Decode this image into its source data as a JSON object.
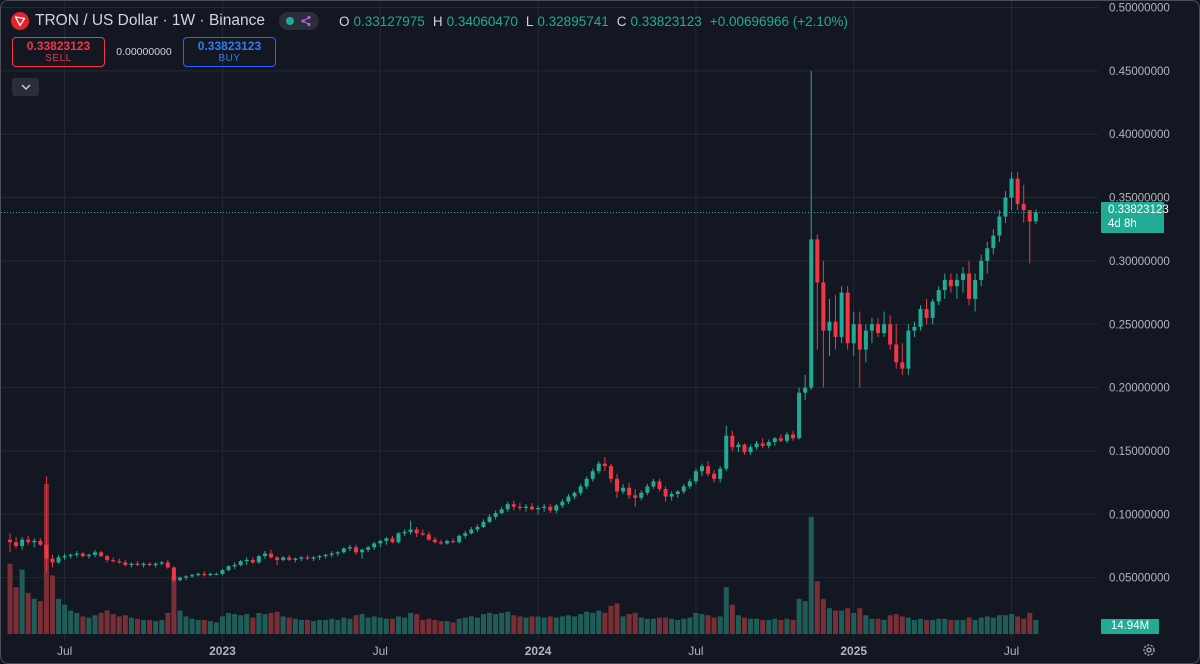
{
  "legend": {
    "symbol": "TRON / US Dollar · 1W · Binance",
    "ohlc": {
      "o_label": "O",
      "o": "0.33127975",
      "h_label": "H",
      "h": "0.34060470",
      "l_label": "L",
      "l": "0.32895741",
      "c_label": "C",
      "c": "0.33823123",
      "change": "+0.00696966 (+2.10%)"
    },
    "status_icon": "connected-dot-icon",
    "indicator_icon": "indicator-plugin-icon"
  },
  "trade": {
    "sell_price": "0.33823123",
    "sell_label": "SELL",
    "spread": "0.00000000",
    "buy_price": "0.33823123",
    "buy_label": "BUY"
  },
  "price_tag": {
    "price": "0.33823123",
    "countdown": "4d 8h"
  },
  "volume_tag": "14.94M",
  "colors": {
    "up": "#22ab94",
    "down": "#f23645",
    "up_volume": "#1f5e58",
    "down_volume": "#7a2e35",
    "background": "#131722",
    "grid": "#242832",
    "axis_text": "#b2b5be"
  },
  "chart_data": {
    "type": "candlestick",
    "timeframe": "1W",
    "exchange": "Binance",
    "ylim": [
      0,
      0.5
    ],
    "y_ticks": [
      "0.50000000",
      "0.45000000",
      "0.40000000",
      "0.35000000",
      "0.30000000",
      "0.25000000",
      "0.20000000",
      "0.15000000",
      "0.10000000",
      "0.05000000"
    ],
    "x_ticks": [
      "Jul",
      "2023",
      "Jul",
      "2024",
      "Jul",
      "2025",
      "Jul"
    ],
    "x_tick_weeks": [
      9,
      35,
      61,
      87,
      113,
      139,
      165
    ],
    "volume_scale_max": 128,
    "last_price": 0.33823123,
    "weeks": [
      "2022-05-02",
      "2022-05-09",
      "2022-05-16",
      "2022-05-23",
      "2022-05-30",
      "2022-06-06",
      "2022-06-13",
      "2022-06-20",
      "2022-06-27",
      "2022-07-04",
      "2022-07-11",
      "2022-07-18",
      "2022-07-25",
      "2022-08-01",
      "2022-08-08",
      "2022-08-15",
      "2022-08-22",
      "2022-08-29",
      "2022-09-05",
      "2022-09-12",
      "2022-09-19",
      "2022-09-26",
      "2022-10-03",
      "2022-10-10",
      "2022-10-17",
      "2022-10-24",
      "2022-10-31",
      "2022-11-07",
      "2022-11-14",
      "2022-11-21",
      "2022-11-28",
      "2022-12-05",
      "2022-12-12",
      "2022-12-19",
      "2022-12-26",
      "2023-01-02",
      "2023-01-09",
      "2023-01-16",
      "2023-01-23",
      "2023-01-30",
      "2023-02-06",
      "2023-02-13",
      "2023-02-20",
      "2023-02-27",
      "2023-03-06",
      "2023-03-13",
      "2023-03-20",
      "2023-03-27",
      "2023-04-03",
      "2023-04-10",
      "2023-04-17",
      "2023-04-24",
      "2023-05-01",
      "2023-05-08",
      "2023-05-15",
      "2023-05-22",
      "2023-05-29",
      "2023-06-05",
      "2023-06-12",
      "2023-06-19",
      "2023-06-26",
      "2023-07-03",
      "2023-07-10",
      "2023-07-17",
      "2023-07-24",
      "2023-07-31",
      "2023-08-07",
      "2023-08-14",
      "2023-08-21",
      "2023-08-28",
      "2023-09-04",
      "2023-09-11",
      "2023-09-18",
      "2023-09-25",
      "2023-10-02",
      "2023-10-09",
      "2023-10-16",
      "2023-10-23",
      "2023-10-30",
      "2023-11-06",
      "2023-11-13",
      "2023-11-20",
      "2023-11-27",
      "2023-12-04",
      "2023-12-11",
      "2023-12-18",
      "2023-12-25",
      "2024-01-01",
      "2024-01-08",
      "2024-01-15",
      "2024-01-22",
      "2024-01-29",
      "2024-02-05",
      "2024-02-12",
      "2024-02-19",
      "2024-02-26",
      "2024-03-04",
      "2024-03-11",
      "2024-03-18",
      "2024-03-25",
      "2024-04-01",
      "2024-04-08",
      "2024-04-15",
      "2024-04-22",
      "2024-04-29",
      "2024-05-06",
      "2024-05-13",
      "2024-05-20",
      "2024-05-27",
      "2024-06-03",
      "2024-06-10",
      "2024-06-17",
      "2024-06-24",
      "2024-07-01",
      "2024-07-08",
      "2024-07-15",
      "2024-07-22",
      "2024-07-29",
      "2024-08-05",
      "2024-08-12",
      "2024-08-19",
      "2024-08-26",
      "2024-09-02",
      "2024-09-09",
      "2024-09-16",
      "2024-09-23",
      "2024-09-30",
      "2024-10-07",
      "2024-10-14",
      "2024-10-21",
      "2024-10-28",
      "2024-11-04",
      "2024-11-11",
      "2024-11-18",
      "2024-11-25",
      "2024-12-02",
      "2024-12-09",
      "2024-12-16",
      "2024-12-23",
      "2024-12-30",
      "2025-01-06",
      "2025-01-13",
      "2025-01-20",
      "2025-01-27",
      "2025-02-03",
      "2025-02-10",
      "2025-02-17",
      "2025-02-24",
      "2025-03-03",
      "2025-03-10",
      "2025-03-17",
      "2025-03-24",
      "2025-03-31",
      "2025-04-07",
      "2025-04-14",
      "2025-04-21",
      "2025-04-28",
      "2025-05-05",
      "2025-05-12",
      "2025-05-19",
      "2025-05-26",
      "2025-06-02",
      "2025-06-09",
      "2025-06-16",
      "2025-06-23",
      "2025-06-30",
      "2025-07-07",
      "2025-07-14",
      "2025-07-21",
      "2025-07-28",
      "2025-08-04",
      "2025-08-11",
      "2025-08-18"
    ],
    "candles": [
      [
        0.08,
        0.085,
        0.07,
        0.078,
        60
      ],
      [
        0.078,
        0.082,
        0.073,
        0.075,
        40
      ],
      [
        0.075,
        0.082,
        0.072,
        0.08,
        55
      ],
      [
        0.08,
        0.083,
        0.076,
        0.078,
        35
      ],
      [
        0.078,
        0.081,
        0.074,
        0.079,
        30
      ],
      [
        0.079,
        0.081,
        0.075,
        0.076,
        28
      ],
      [
        0.076,
        0.13,
        0.055,
        0.065,
        128
      ],
      [
        0.065,
        0.068,
        0.058,
        0.062,
        50
      ],
      [
        0.062,
        0.068,
        0.061,
        0.066,
        30
      ],
      [
        0.066,
        0.069,
        0.064,
        0.067,
        25
      ],
      [
        0.067,
        0.069,
        0.065,
        0.068,
        20
      ],
      [
        0.068,
        0.071,
        0.066,
        0.069,
        18
      ],
      [
        0.069,
        0.07,
        0.066,
        0.067,
        15
      ],
      [
        0.067,
        0.069,
        0.065,
        0.068,
        14
      ],
      [
        0.068,
        0.072,
        0.066,
        0.07,
        16
      ],
      [
        0.07,
        0.071,
        0.066,
        0.067,
        18
      ],
      [
        0.067,
        0.068,
        0.062,
        0.064,
        20
      ],
      [
        0.064,
        0.066,
        0.062,
        0.063,
        17
      ],
      [
        0.063,
        0.065,
        0.061,
        0.062,
        15
      ],
      [
        0.062,
        0.064,
        0.059,
        0.06,
        16
      ],
      [
        0.06,
        0.062,
        0.058,
        0.061,
        14
      ],
      [
        0.061,
        0.063,
        0.059,
        0.06,
        13
      ],
      [
        0.06,
        0.062,
        0.058,
        0.061,
        12
      ],
      [
        0.061,
        0.062,
        0.059,
        0.06,
        12
      ],
      [
        0.06,
        0.062,
        0.058,
        0.061,
        11
      ],
      [
        0.061,
        0.063,
        0.06,
        0.062,
        12
      ],
      [
        0.062,
        0.064,
        0.057,
        0.058,
        18
      ],
      [
        0.058,
        0.059,
        0.046,
        0.048,
        50
      ],
      [
        0.048,
        0.051,
        0.047,
        0.05,
        20
      ],
      [
        0.05,
        0.052,
        0.048,
        0.051,
        15
      ],
      [
        0.051,
        0.053,
        0.05,
        0.052,
        13
      ],
      [
        0.052,
        0.054,
        0.051,
        0.053,
        12
      ],
      [
        0.053,
        0.055,
        0.051,
        0.052,
        12
      ],
      [
        0.052,
        0.054,
        0.051,
        0.053,
        11
      ],
      [
        0.053,
        0.054,
        0.052,
        0.053,
        10
      ],
      [
        0.053,
        0.057,
        0.052,
        0.056,
        15
      ],
      [
        0.056,
        0.06,
        0.055,
        0.059,
        18
      ],
      [
        0.059,
        0.062,
        0.057,
        0.06,
        17
      ],
      [
        0.06,
        0.064,
        0.059,
        0.063,
        16
      ],
      [
        0.063,
        0.066,
        0.06,
        0.064,
        17
      ],
      [
        0.064,
        0.066,
        0.061,
        0.062,
        14
      ],
      [
        0.062,
        0.068,
        0.061,
        0.067,
        18
      ],
      [
        0.067,
        0.071,
        0.065,
        0.069,
        17
      ],
      [
        0.069,
        0.072,
        0.065,
        0.066,
        18
      ],
      [
        0.066,
        0.067,
        0.06,
        0.064,
        19
      ],
      [
        0.064,
        0.067,
        0.063,
        0.066,
        15
      ],
      [
        0.066,
        0.068,
        0.063,
        0.064,
        14
      ],
      [
        0.064,
        0.066,
        0.062,
        0.065,
        13
      ],
      [
        0.065,
        0.067,
        0.063,
        0.066,
        12
      ],
      [
        0.066,
        0.068,
        0.064,
        0.065,
        12
      ],
      [
        0.065,
        0.067,
        0.063,
        0.066,
        11
      ],
      [
        0.066,
        0.068,
        0.064,
        0.067,
        12
      ],
      [
        0.067,
        0.069,
        0.065,
        0.068,
        12
      ],
      [
        0.068,
        0.071,
        0.066,
        0.069,
        13
      ],
      [
        0.069,
        0.071,
        0.067,
        0.07,
        12
      ],
      [
        0.07,
        0.074,
        0.069,
        0.073,
        14
      ],
      [
        0.073,
        0.076,
        0.071,
        0.074,
        13
      ],
      [
        0.074,
        0.076,
        0.068,
        0.07,
        16
      ],
      [
        0.07,
        0.073,
        0.065,
        0.072,
        17
      ],
      [
        0.072,
        0.075,
        0.07,
        0.074,
        14
      ],
      [
        0.074,
        0.078,
        0.072,
        0.077,
        15
      ],
      [
        0.077,
        0.08,
        0.074,
        0.079,
        14
      ],
      [
        0.079,
        0.082,
        0.076,
        0.081,
        13
      ],
      [
        0.081,
        0.083,
        0.077,
        0.078,
        13
      ],
      [
        0.078,
        0.086,
        0.077,
        0.085,
        15
      ],
      [
        0.085,
        0.088,
        0.083,
        0.086,
        14
      ],
      [
        0.086,
        0.095,
        0.084,
        0.088,
        18
      ],
      [
        0.088,
        0.09,
        0.082,
        0.085,
        17
      ],
      [
        0.085,
        0.088,
        0.083,
        0.084,
        12
      ],
      [
        0.084,
        0.086,
        0.079,
        0.08,
        13
      ],
      [
        0.08,
        0.082,
        0.077,
        0.078,
        12
      ],
      [
        0.078,
        0.08,
        0.076,
        0.077,
        11
      ],
      [
        0.077,
        0.08,
        0.076,
        0.079,
        11
      ],
      [
        0.079,
        0.081,
        0.077,
        0.078,
        10
      ],
      [
        0.078,
        0.084,
        0.077,
        0.083,
        13
      ],
      [
        0.083,
        0.087,
        0.081,
        0.085,
        14
      ],
      [
        0.085,
        0.09,
        0.084,
        0.088,
        15
      ],
      [
        0.088,
        0.092,
        0.086,
        0.09,
        14
      ],
      [
        0.09,
        0.096,
        0.089,
        0.094,
        17
      ],
      [
        0.094,
        0.1,
        0.093,
        0.098,
        18
      ],
      [
        0.098,
        0.103,
        0.096,
        0.101,
        17
      ],
      [
        0.101,
        0.106,
        0.1,
        0.104,
        18
      ],
      [
        0.104,
        0.11,
        0.102,
        0.108,
        19
      ],
      [
        0.108,
        0.111,
        0.103,
        0.106,
        16
      ],
      [
        0.106,
        0.109,
        0.103,
        0.105,
        15
      ],
      [
        0.105,
        0.108,
        0.102,
        0.106,
        14
      ],
      [
        0.106,
        0.109,
        0.103,
        0.104,
        15
      ],
      [
        0.104,
        0.107,
        0.1,
        0.105,
        15
      ],
      [
        0.105,
        0.108,
        0.102,
        0.106,
        14
      ],
      [
        0.106,
        0.108,
        0.101,
        0.103,
        15
      ],
      [
        0.103,
        0.108,
        0.101,
        0.107,
        14
      ],
      [
        0.107,
        0.112,
        0.105,
        0.11,
        15
      ],
      [
        0.11,
        0.116,
        0.108,
        0.114,
        16
      ],
      [
        0.114,
        0.118,
        0.112,
        0.117,
        15
      ],
      [
        0.117,
        0.124,
        0.115,
        0.122,
        17
      ],
      [
        0.122,
        0.13,
        0.12,
        0.128,
        19
      ],
      [
        0.128,
        0.136,
        0.126,
        0.134,
        18
      ],
      [
        0.134,
        0.142,
        0.132,
        0.14,
        20
      ],
      [
        0.14,
        0.145,
        0.134,
        0.138,
        18
      ],
      [
        0.138,
        0.14,
        0.125,
        0.128,
        24
      ],
      [
        0.128,
        0.132,
        0.113,
        0.118,
        26
      ],
      [
        0.118,
        0.124,
        0.116,
        0.121,
        15
      ],
      [
        0.121,
        0.125,
        0.112,
        0.115,
        17
      ],
      [
        0.115,
        0.12,
        0.106,
        0.113,
        18
      ],
      [
        0.113,
        0.119,
        0.111,
        0.117,
        14
      ],
      [
        0.117,
        0.124,
        0.115,
        0.122,
        13
      ],
      [
        0.122,
        0.128,
        0.12,
        0.126,
        13
      ],
      [
        0.126,
        0.128,
        0.118,
        0.12,
        14
      ],
      [
        0.12,
        0.122,
        0.11,
        0.114,
        14
      ],
      [
        0.114,
        0.118,
        0.111,
        0.116,
        13
      ],
      [
        0.116,
        0.119,
        0.113,
        0.118,
        12
      ],
      [
        0.118,
        0.124,
        0.116,
        0.122,
        13
      ],
      [
        0.122,
        0.128,
        0.12,
        0.126,
        14
      ],
      [
        0.126,
        0.136,
        0.124,
        0.134,
        18
      ],
      [
        0.134,
        0.14,
        0.13,
        0.138,
        17
      ],
      [
        0.138,
        0.142,
        0.13,
        0.132,
        16
      ],
      [
        0.132,
        0.135,
        0.125,
        0.128,
        14
      ],
      [
        0.128,
        0.138,
        0.125,
        0.136,
        15
      ],
      [
        0.136,
        0.17,
        0.134,
        0.162,
        40
      ],
      [
        0.162,
        0.166,
        0.15,
        0.153,
        25
      ],
      [
        0.153,
        0.157,
        0.149,
        0.155,
        16
      ],
      [
        0.155,
        0.156,
        0.147,
        0.149,
        14
      ],
      [
        0.149,
        0.155,
        0.147,
        0.153,
        13
      ],
      [
        0.153,
        0.158,
        0.151,
        0.156,
        13
      ],
      [
        0.156,
        0.16,
        0.152,
        0.154,
        12
      ],
      [
        0.154,
        0.159,
        0.152,
        0.157,
        12
      ],
      [
        0.157,
        0.161,
        0.154,
        0.16,
        13
      ],
      [
        0.16,
        0.163,
        0.157,
        0.158,
        12
      ],
      [
        0.158,
        0.165,
        0.156,
        0.163,
        13
      ],
      [
        0.163,
        0.166,
        0.158,
        0.16,
        12
      ],
      [
        0.16,
        0.2,
        0.159,
        0.196,
        30
      ],
      [
        0.196,
        0.21,
        0.19,
        0.2,
        28
      ],
      [
        0.2,
        0.45,
        0.198,
        0.317,
        100
      ],
      [
        0.317,
        0.321,
        0.23,
        0.283,
        45
      ],
      [
        0.283,
        0.3,
        0.2,
        0.245,
        30
      ],
      [
        0.245,
        0.27,
        0.225,
        0.252,
        22
      ],
      [
        0.252,
        0.273,
        0.23,
        0.24,
        20
      ],
      [
        0.24,
        0.28,
        0.235,
        0.275,
        20
      ],
      [
        0.275,
        0.28,
        0.23,
        0.235,
        22
      ],
      [
        0.235,
        0.26,
        0.225,
        0.25,
        18
      ],
      [
        0.25,
        0.26,
        0.2,
        0.23,
        22
      ],
      [
        0.23,
        0.25,
        0.22,
        0.245,
        16
      ],
      [
        0.245,
        0.255,
        0.235,
        0.25,
        13
      ],
      [
        0.25,
        0.255,
        0.24,
        0.243,
        13
      ],
      [
        0.243,
        0.26,
        0.24,
        0.25,
        12
      ],
      [
        0.25,
        0.257,
        0.23,
        0.234,
        16
      ],
      [
        0.234,
        0.25,
        0.215,
        0.22,
        17
      ],
      [
        0.22,
        0.235,
        0.21,
        0.215,
        15
      ],
      [
        0.215,
        0.25,
        0.21,
        0.245,
        14
      ],
      [
        0.245,
        0.252,
        0.24,
        0.248,
        12
      ],
      [
        0.248,
        0.265,
        0.245,
        0.262,
        13
      ],
      [
        0.262,
        0.27,
        0.25,
        0.255,
        12
      ],
      [
        0.255,
        0.27,
        0.25,
        0.268,
        12
      ],
      [
        0.268,
        0.28,
        0.265,
        0.277,
        13
      ],
      [
        0.277,
        0.29,
        0.27,
        0.285,
        13
      ],
      [
        0.285,
        0.29,
        0.275,
        0.28,
        12
      ],
      [
        0.28,
        0.29,
        0.27,
        0.285,
        12
      ],
      [
        0.285,
        0.295,
        0.275,
        0.29,
        12
      ],
      [
        0.29,
        0.3,
        0.265,
        0.27,
        14
      ],
      [
        0.27,
        0.29,
        0.26,
        0.285,
        12
      ],
      [
        0.285,
        0.305,
        0.28,
        0.3,
        14
      ],
      [
        0.3,
        0.315,
        0.29,
        0.31,
        15
      ],
      [
        0.31,
        0.325,
        0.305,
        0.32,
        14
      ],
      [
        0.32,
        0.34,
        0.315,
        0.335,
        16
      ],
      [
        0.335,
        0.355,
        0.33,
        0.35,
        16
      ],
      [
        0.35,
        0.37,
        0.34,
        0.365,
        17
      ],
      [
        0.365,
        0.37,
        0.34,
        0.345,
        15
      ],
      [
        0.345,
        0.36,
        0.33,
        0.34,
        13
      ],
      [
        0.34,
        0.34,
        0.298,
        0.331,
        18
      ],
      [
        0.3313,
        0.3406,
        0.329,
        0.3382,
        12
      ]
    ]
  }
}
